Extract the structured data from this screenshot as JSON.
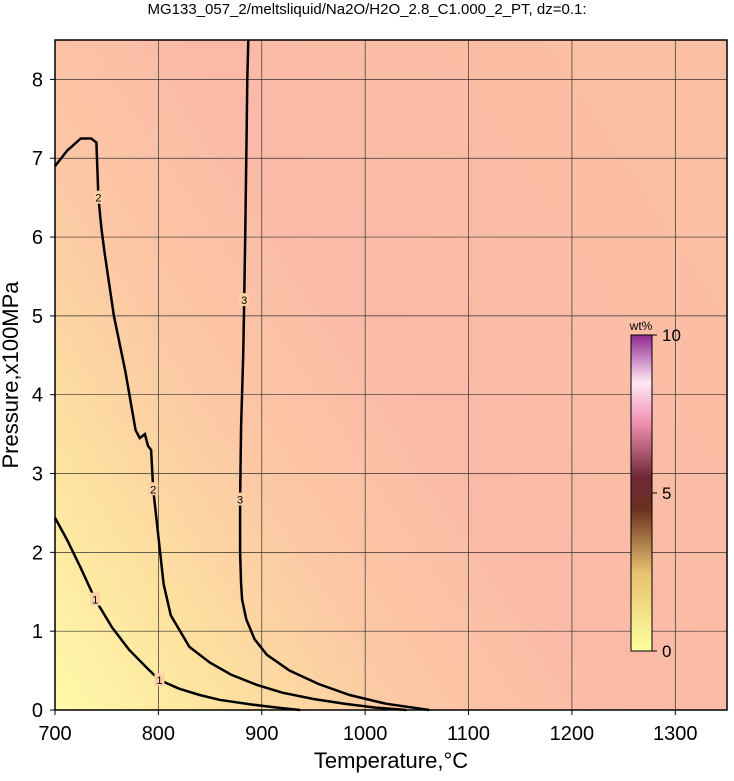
{
  "chart_data": {
    "type": "contour",
    "title": "MG133_057_2/meltsliquid/Na2O/H2O_2.8_C1.000_2_PT, dz=0.1:",
    "x_label": "Temperature,°C",
    "y_label": "Pressure,x100MPa",
    "xlim": [
      700,
      1350
    ],
    "ylim": [
      0,
      8.5
    ],
    "xticks": [
      700,
      800,
      900,
      1000,
      1100,
      1200,
      1300
    ],
    "yticks": [
      0,
      1,
      2,
      3,
      4,
      5,
      6,
      7,
      8
    ],
    "grid": true,
    "contours": [
      {
        "level": 1,
        "x": [
          700,
          712,
          725,
          739,
          755,
          772,
          790,
          801,
          820,
          840,
          859,
          890,
          915,
          937
        ],
        "y": [
          2.44,
          2.15,
          1.8,
          1.4,
          1.05,
          0.76,
          0.52,
          0.38,
          0.27,
          0.19,
          0.13,
          0.07,
          0.03,
          0
        ]
      },
      {
        "level": 2,
        "x": [
          700,
          712,
          725,
          735,
          740,
          742,
          745,
          748,
          757,
          768,
          778,
          782,
          787,
          790,
          793,
          795,
          800,
          805,
          812,
          830,
          850,
          870,
          895,
          920,
          950,
          980,
          1010,
          1040
        ],
        "y": [
          6.9,
          7.1,
          7.25,
          7.25,
          7.2,
          6.5,
          6.1,
          5.8,
          5.0,
          4.3,
          3.55,
          3.45,
          3.5,
          3.35,
          3.3,
          2.8,
          2.2,
          1.6,
          1.2,
          0.8,
          0.6,
          0.45,
          0.32,
          0.22,
          0.14,
          0.08,
          0.03,
          0
        ]
      },
      {
        "level": 3,
        "x": [
          887,
          886,
          885,
          884,
          883,
          882,
          880,
          879,
          879,
          880,
          881,
          885,
          893,
          905,
          927,
          955,
          985,
          1020,
          1062
        ],
        "y": [
          8.5,
          8.0,
          7.0,
          6.0,
          5.2,
          4.5,
          3.6,
          2.67,
          2.0,
          1.6,
          1.4,
          1.15,
          0.9,
          0.7,
          0.5,
          0.33,
          0.19,
          0.08,
          0
        ]
      }
    ],
    "colorbar": {
      "label": "wt%",
      "lim": [
        0,
        10
      ],
      "ticks": [
        0,
        5,
        10
      ]
    }
  }
}
